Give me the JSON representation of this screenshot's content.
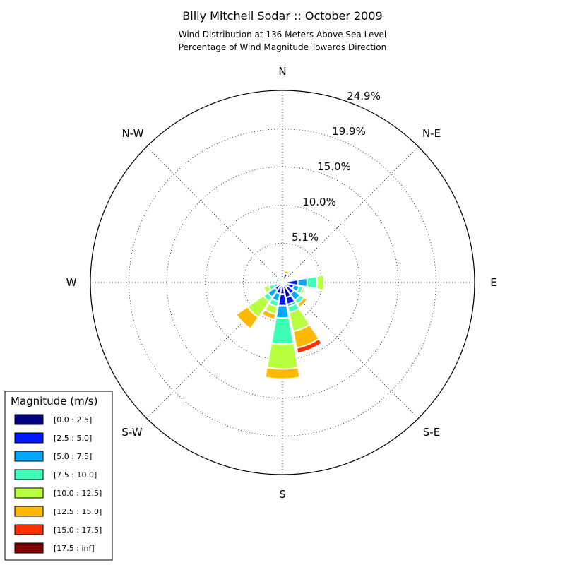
{
  "chart_data": {
    "type": "windrose",
    "title": "Billy Mitchell Sodar :: October 2009",
    "subtitle_lines": [
      "Wind Distribution at 136 Meters Above Sea Level",
      "Percentage of Wind Magnitude Towards Direction"
    ],
    "directions": [
      "N",
      "N-E",
      "E",
      "S-E",
      "S",
      "S-W",
      "W",
      "N-W"
    ],
    "radial_ticks": [
      "5.1%",
      "10.0%",
      "15.0%",
      "19.9%",
      "24.9%"
    ],
    "radial_tick_values": [
      5.1,
      10.0,
      15.0,
      19.9,
      24.9
    ],
    "r_max": 24.9,
    "legend": {
      "title": "Magnitude (m/s)",
      "bins": [
        "[0.0 : 2.5]",
        "[2.5 : 5.0]",
        "[5.0 : 7.5]",
        "[7.5 : 10.0]",
        "[10.0 : 12.5]",
        "[12.5 : 15.0]",
        "[15.0 : 17.5]",
        "[17.5 : inf]"
      ],
      "colors": [
        "#000080",
        "#0019ff",
        "#00a8ff",
        "#3fffb7",
        "#b7ff3f",
        "#ffb900",
        "#ff3000",
        "#800000"
      ]
    },
    "sector_width_deg": 22.5,
    "sectors": [
      {
        "dir_deg": 0,
        "cumulative": [
          0.3,
          0.5
        ]
      },
      {
        "dir_deg": 22.5,
        "cumulative": [
          1.2,
          1.2,
          1.2,
          1.2,
          1.2,
          1.6
        ]
      },
      {
        "dir_deg": 45,
        "cumulative": [
          0.0,
          0.0
        ]
      },
      {
        "dir_deg": 67.5,
        "cumulative": [
          0.2,
          0.4
        ]
      },
      {
        "dir_deg": 90,
        "cumulative": [
          0.3,
          2.0,
          3.2,
          4.5,
          5.4
        ]
      },
      {
        "dir_deg": 112.5,
        "cumulative": [
          0.6,
          1.5,
          2.2,
          2.7,
          3.0
        ]
      },
      {
        "dir_deg": 135,
        "cumulative": [
          0.8,
          1.8,
          2.8,
          3.4,
          3.4,
          3.9
        ]
      },
      {
        "dir_deg": 157.5,
        "cumulative": [
          2.0,
          2.9,
          3.2,
          4.0,
          6.5,
          8.7,
          9.4
        ]
      },
      {
        "dir_deg": 180,
        "cumulative": [
          1.5,
          3.0,
          4.6,
          8.0,
          11.2,
          12.5
        ]
      },
      {
        "dir_deg": 202.5,
        "cumulative": [
          0.5,
          1.5,
          2.5,
          3.2,
          4.2,
          4.9
        ]
      },
      {
        "dir_deg": 225,
        "cumulative": [
          0.3,
          1.2,
          2.3,
          3.0,
          5.5,
          7.3
        ]
      },
      {
        "dir_deg": 247.5,
        "cumulative": [
          0.3,
          0.7,
          1.1,
          1.8,
          2.5,
          2.5
        ]
      },
      {
        "dir_deg": 270,
        "cumulative": [
          0.3,
          0.5
        ]
      },
      {
        "dir_deg": 292.5,
        "cumulative": [
          0.3,
          0.5,
          0.9
        ]
      },
      {
        "dir_deg": 315,
        "cumulative": [
          0.0,
          0.0
        ]
      },
      {
        "dir_deg": 337.5,
        "cumulative": [
          0.0,
          0.0
        ]
      }
    ]
  }
}
